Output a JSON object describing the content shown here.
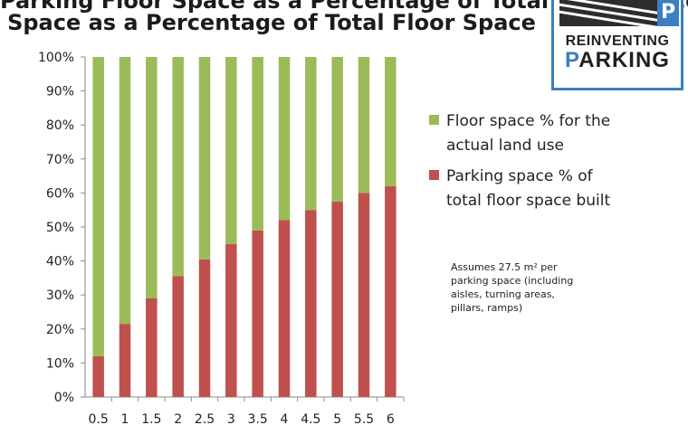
{
  "chart_data": {
    "type": "bar",
    "stacked": true,
    "title_lines": [
      "Parking Floor Space as a Percentage of Total Floor Space",
      "Space as a Percentage of Total Floor Space"
    ],
    "categories": [
      "0.5",
      "1",
      "1.5",
      "2",
      "2.5",
      "3",
      "3.5",
      "4",
      "4.5",
      "5",
      "5.5",
      "6"
    ],
    "series": [
      {
        "name": "Parking space % of total floor space built",
        "color": "#c0504d",
        "values": [
          12,
          21.5,
          29,
          35.5,
          40.5,
          45,
          49,
          52,
          55,
          57.5,
          60,
          62
        ]
      },
      {
        "name": "Floor space % for the actual land use",
        "color": "#9bbb59",
        "values": [
          88,
          78.5,
          71,
          64.5,
          59.5,
          55,
          51,
          48,
          45,
          42.5,
          40,
          38
        ]
      }
    ],
    "ylim": [
      0,
      100
    ],
    "y_ticks": [
      0,
      10,
      20,
      30,
      40,
      50,
      60,
      70,
      80,
      90,
      100
    ],
    "y_tick_suffix": "%",
    "grid": false,
    "legend_position": "right",
    "legend": [
      {
        "lines": [
          "Floor space % for the",
          "actual land use"
        ],
        "color": "#9bbb59"
      },
      {
        "lines": [
          "Parking space % of",
          "total floor space built"
        ],
        "color": "#c0504d"
      }
    ],
    "annotation": [
      "Assumes 27.5 m² per",
      "parking space (including",
      "aisles, turning areas,",
      "pillars, ramps)"
    ]
  },
  "logo": {
    "mark_letter": "P",
    "line1": "REINVENTING",
    "line2_first": "P",
    "line2_rest": "ARKING",
    "colors": {
      "blue": "#3a7fc1",
      "dark": "#2d2d2d"
    }
  }
}
